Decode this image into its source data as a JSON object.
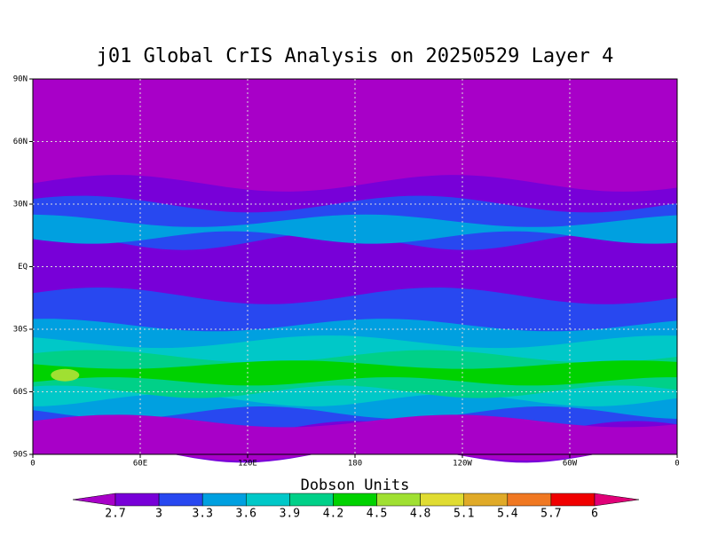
{
  "title": "j01 Global CrIS Analysis on 20250529 Layer 4",
  "map": {
    "lon_ticks": [
      "0",
      "60E",
      "120E",
      "180",
      "120W",
      "60W",
      "0"
    ],
    "lat_ticks": [
      "90N",
      "60N",
      "30N",
      "EQ",
      "30S",
      "60S",
      "90S"
    ]
  },
  "colorbar": {
    "title": "Dobson Units",
    "levels": [
      2.7,
      3,
      3.3,
      3.6,
      3.9,
      4.2,
      4.5,
      4.8,
      5.1,
      5.4,
      5.7,
      6
    ],
    "colors": [
      "#a800c8",
      "#7800d8",
      "#2848f0",
      "#00a0e0",
      "#00c8c8",
      "#00d088",
      "#00d200",
      "#a0e032",
      "#e0dc32",
      "#e0aa28",
      "#f07822",
      "#f00000",
      "#e00078"
    ]
  }
}
